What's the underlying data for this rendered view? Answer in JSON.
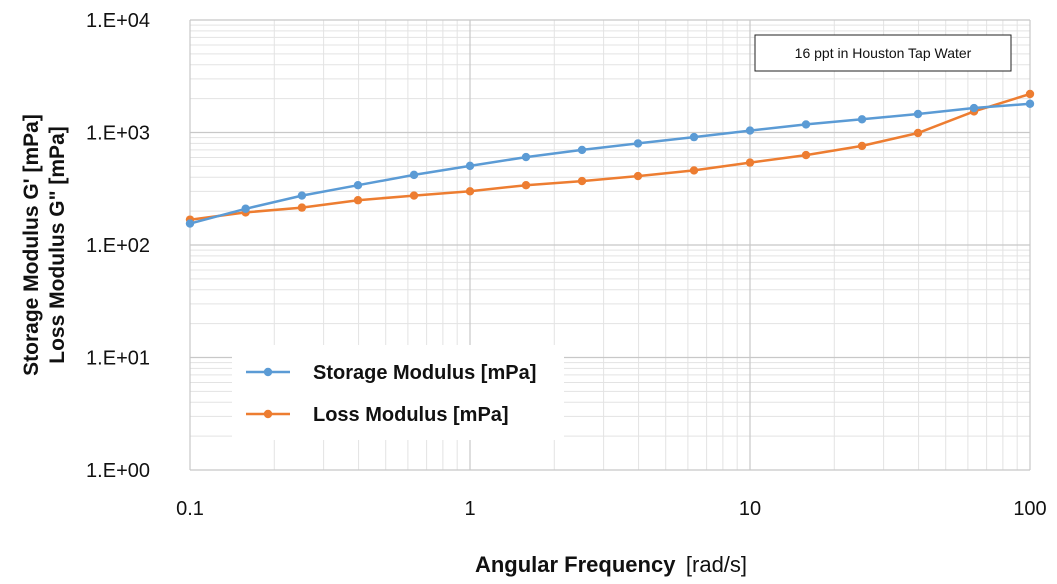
{
  "chart_data": {
    "type": "line",
    "x_scale": "log",
    "y_scale": "log",
    "xlim": [
      0.1,
      100
    ],
    "ylim": [
      1,
      10000
    ],
    "x_ticks": [
      "0.1",
      "1",
      "10",
      "100"
    ],
    "y_ticks": [
      "1.E+00",
      "1.E+01",
      "1.E+02",
      "1.E+03",
      "1.E+04"
    ],
    "ylabel_line1": "Storage Modulus G' [mPa]",
    "ylabel_line2": "Loss Modulus G\" [mPa]",
    "xlabel_bold": "Angular Frequency",
    "xlabel_unit": "[rad/s]",
    "annotation": "16 ppt in Houston Tap Water",
    "grid": true,
    "legend_position": "lower-left",
    "x": [
      0.1,
      0.158,
      0.251,
      0.398,
      0.631,
      1.0,
      1.585,
      2.512,
      3.981,
      6.31,
      10.0,
      15.85,
      25.12,
      39.81,
      63.1,
      100.0
    ],
    "series": [
      {
        "name": "Storage Modulus [mPa]",
        "color": "#5b9bd5",
        "values": [
          155,
          210,
          275,
          340,
          420,
          505,
          605,
          700,
          800,
          910,
          1040,
          1180,
          1310,
          1460,
          1650,
          1800
        ]
      },
      {
        "name": "Loss Modulus [mPa]",
        "color": "#ed7d31",
        "values": [
          168,
          195,
          215,
          250,
          275,
          300,
          340,
          370,
          410,
          460,
          540,
          630,
          760,
          990,
          1540,
          2200
        ]
      }
    ]
  }
}
